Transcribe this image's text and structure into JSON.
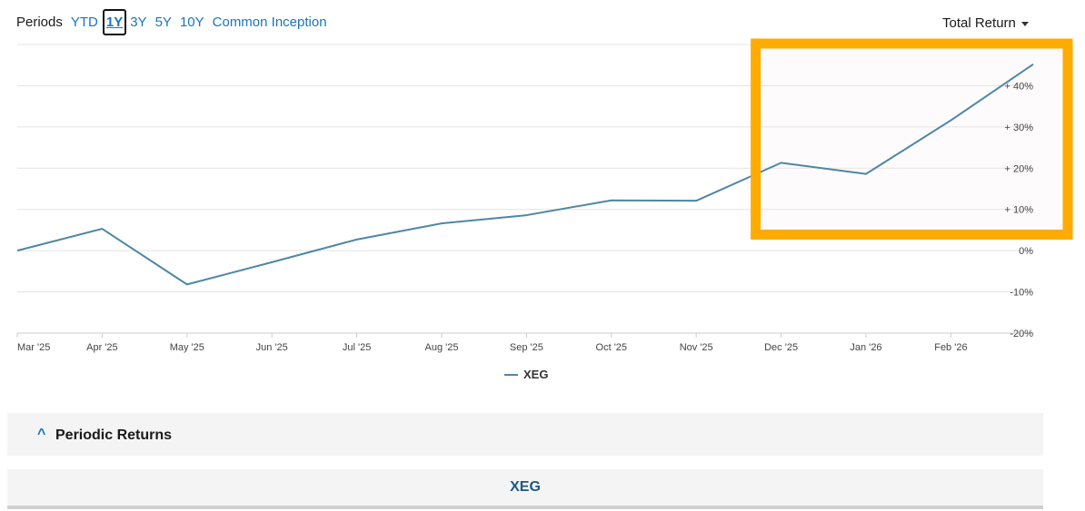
{
  "periods": {
    "label": "Periods",
    "options": [
      "YTD",
      "1Y",
      "3Y",
      "5Y",
      "10Y",
      "Common Inception"
    ],
    "active": "1Y"
  },
  "total_return": {
    "label": "Total Return"
  },
  "colors": {
    "line": "#4e87a5",
    "highlight": "#ffab00",
    "link": "#1b75bb"
  },
  "chart_data": {
    "type": "line",
    "x": [
      "Mar '25",
      "Apr '25",
      "May '25",
      "Jun '25",
      "Jul '25",
      "Aug '25",
      "Sep '25",
      "Oct '25",
      "Nov '25",
      "Dec '25",
      "Jan '26",
      "Feb '26",
      "end"
    ],
    "x_tick_labels": [
      "Mar '25",
      "Apr '25",
      "May '25",
      "Jun '25",
      "Jul '25",
      "Aug '25",
      "Sep '25",
      "Oct '25",
      "Nov '25",
      "Dec '25",
      "Jan '26",
      "Feb '26"
    ],
    "series": [
      {
        "name": "XEG",
        "values": [
          0,
          5.3,
          -8.2,
          -2.8,
          2.7,
          6.6,
          8.6,
          12.2,
          12.1,
          21.3,
          18.6,
          31.6,
          45.2
        ]
      }
    ],
    "y_tick_labels": [
      "+ 40%",
      "+ 30%",
      "+ 20%",
      "+ 10%",
      "0%",
      "-10%",
      "-20%"
    ],
    "y_ticks": [
      40,
      30,
      20,
      10,
      0,
      -10,
      -20
    ],
    "ylim": [
      -20,
      50
    ],
    "grid": true,
    "legend": "bottom-center",
    "highlight_region": {
      "x_from": "Dec '25",
      "y_min": 5,
      "y_max": 50
    }
  },
  "legend": {
    "label": "XEG"
  },
  "periodic_returns": {
    "title": "Periodic Returns"
  },
  "table": {
    "ticker": "XEG"
  }
}
